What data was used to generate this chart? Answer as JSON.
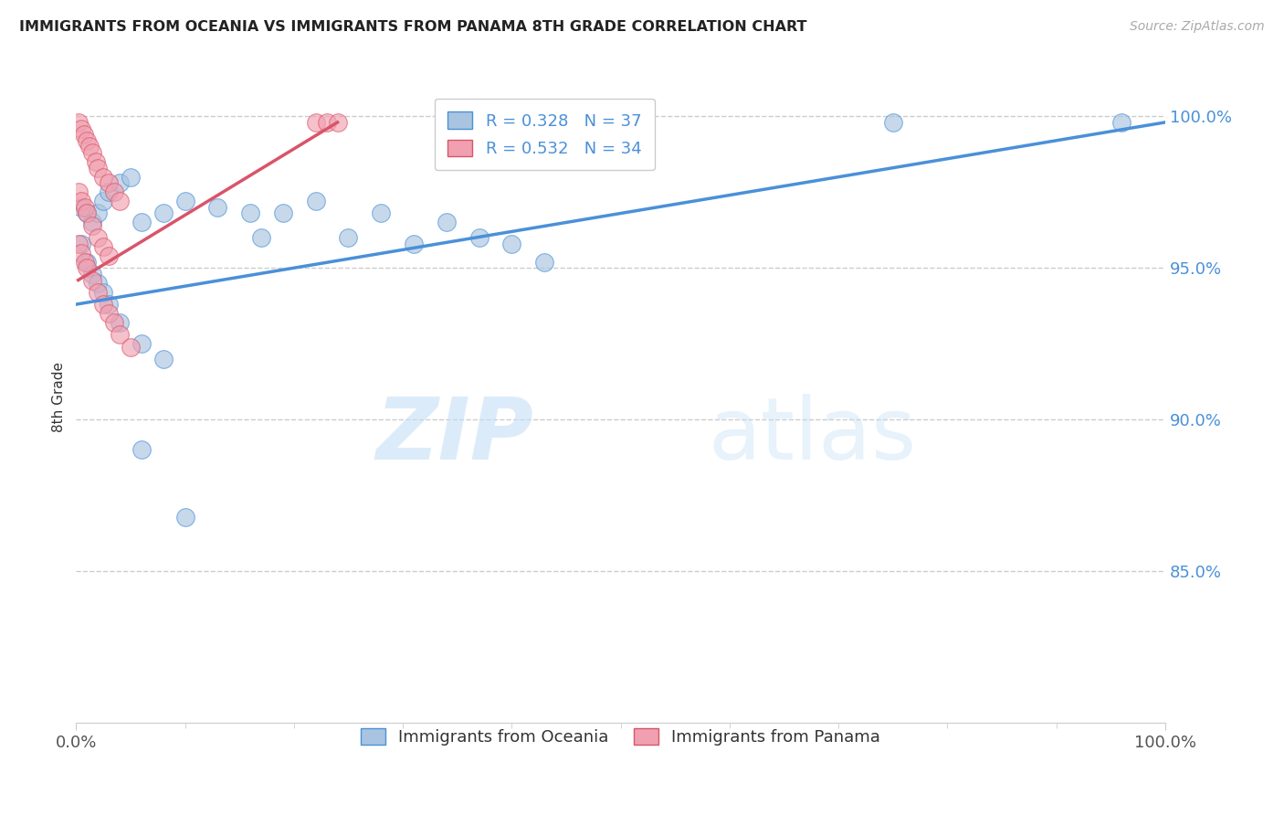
{
  "title": "IMMIGRANTS FROM OCEANIA VS IMMIGRANTS FROM PANAMA 8TH GRADE CORRELATION CHART",
  "source": "Source: ZipAtlas.com",
  "xlabel": "",
  "ylabel": "8th Grade",
  "legend_label_blue": "Immigrants from Oceania",
  "legend_label_pink": "Immigrants from Panama",
  "legend_R_blue": "R = 0.328",
  "legend_N_blue": "N = 37",
  "legend_R_pink": "R = 0.532",
  "legend_N_pink": "N = 34",
  "xlim": [
    0.0,
    1.0
  ],
  "ylim": [
    0.8,
    1.015
  ],
  "yticks": [
    0.85,
    0.9,
    0.95,
    1.0
  ],
  "ytick_labels": [
    "85.0%",
    "90.0%",
    "95.0%",
    "100.0%"
  ],
  "xticks": [
    0.0,
    1.0
  ],
  "xtick_labels": [
    "0.0%",
    "100.0%"
  ],
  "color_blue": "#a8c4e0",
  "color_pink": "#f0a0b0",
  "trendline_blue": "#4a90d9",
  "trendline_pink": "#d9546a",
  "background": "#ffffff",
  "grid_color": "#cccccc",
  "watermark_zip": "ZIP",
  "watermark_atlas": "atlas",
  "blue_x": [
    0.005,
    0.01,
    0.015,
    0.02,
    0.025,
    0.03,
    0.04,
    0.05,
    0.06,
    0.08,
    0.1,
    0.13,
    0.16,
    0.19,
    0.22,
    0.25,
    0.28,
    0.31,
    0.34,
    0.37,
    0.4,
    0.43,
    0.005,
    0.01,
    0.015,
    0.02,
    0.025,
    0.03,
    0.04,
    0.06,
    0.08,
    0.36,
    0.75,
    0.96,
    0.17,
    0.06,
    0.1
  ],
  "blue_y": [
    0.97,
    0.968,
    0.965,
    0.968,
    0.972,
    0.975,
    0.978,
    0.98,
    0.965,
    0.968,
    0.972,
    0.97,
    0.968,
    0.968,
    0.972,
    0.96,
    0.968,
    0.958,
    0.965,
    0.96,
    0.958,
    0.952,
    0.958,
    0.952,
    0.948,
    0.945,
    0.942,
    0.938,
    0.932,
    0.925,
    0.92,
    0.998,
    0.998,
    0.998,
    0.96,
    0.89,
    0.868
  ],
  "pink_x": [
    0.002,
    0.005,
    0.007,
    0.01,
    0.012,
    0.015,
    0.018,
    0.02,
    0.025,
    0.03,
    0.035,
    0.04,
    0.002,
    0.005,
    0.008,
    0.01,
    0.015,
    0.02,
    0.025,
    0.03,
    0.002,
    0.005,
    0.008,
    0.01,
    0.015,
    0.02,
    0.025,
    0.03,
    0.035,
    0.04,
    0.05,
    0.22,
    0.23,
    0.24
  ],
  "pink_y": [
    0.998,
    0.996,
    0.994,
    0.992,
    0.99,
    0.988,
    0.985,
    0.983,
    0.98,
    0.978,
    0.975,
    0.972,
    0.975,
    0.972,
    0.97,
    0.968,
    0.964,
    0.96,
    0.957,
    0.954,
    0.958,
    0.955,
    0.952,
    0.95,
    0.946,
    0.942,
    0.938,
    0.935,
    0.932,
    0.928,
    0.924,
    0.998,
    0.998,
    0.998
  ],
  "blue_trendline_x": [
    0.0,
    1.0
  ],
  "blue_trendline_y_start": 0.938,
  "blue_trendline_y_end": 0.998,
  "pink_trendline_x_start": 0.002,
  "pink_trendline_x_end": 0.24,
  "pink_trendline_y_start": 0.946,
  "pink_trendline_y_end": 0.998
}
